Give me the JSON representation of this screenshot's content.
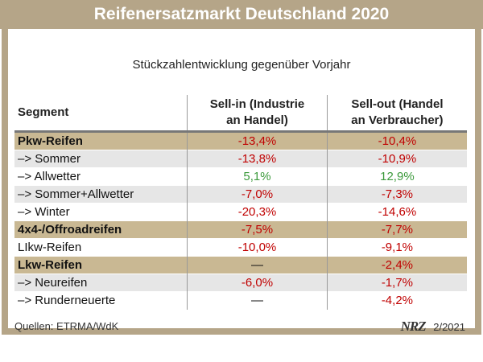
{
  "title": "Reifenersatzmarkt Deutschland 2020",
  "subtitle": "Stückzahlentwicklung gegenüber Vorjahr",
  "header": {
    "segment": "Segment",
    "sellin_line1": "Sell-in (Industrie",
    "sellin_line2": "an Handel)",
    "sellout_line1": "Sell-out (Handel",
    "sellout_line2": "an Verbraucher)"
  },
  "rows": [
    {
      "segment": "Pkw-Reifen",
      "sell_in": "-13,4%",
      "sell_out": "-10,4%",
      "style": "major",
      "in_color": "neg",
      "out_color": "neg"
    },
    {
      "segment": "–> Sommer",
      "sell_in": "-13,8%",
      "sell_out": "-10,9%",
      "style": "sub",
      "in_color": "neg",
      "out_color": "neg"
    },
    {
      "segment": "–> Allwetter",
      "sell_in": "5,1%",
      "sell_out": "12,9%",
      "style": "plain",
      "in_color": "pos",
      "out_color": "pos"
    },
    {
      "segment": "–> Sommer+Allwetter",
      "sell_in": "-7,0%",
      "sell_out": "-7,3%",
      "style": "sub",
      "in_color": "neg",
      "out_color": "neg"
    },
    {
      "segment": "–> Winter",
      "sell_in": "-20,3%",
      "sell_out": "-14,6%",
      "style": "plain",
      "in_color": "neg",
      "out_color": "neg"
    },
    {
      "segment": "4x4-/Offroadreifen",
      "sell_in": "-7,5%",
      "sell_out": "-7,7%",
      "style": "major",
      "in_color": "neg",
      "out_color": "neg"
    },
    {
      "segment": "LIkw-Reifen",
      "sell_in": "-10,0%",
      "sell_out": "-9,1%",
      "style": "plain",
      "in_color": "neg",
      "out_color": "neg"
    },
    {
      "segment": "Lkw-Reifen",
      "sell_in": "—",
      "sell_out": "-2,4%",
      "style": "major",
      "in_color": "dash",
      "out_color": "neg"
    },
    {
      "segment": "–> Neureifen",
      "sell_in": "-6,0%",
      "sell_out": "-1,7%",
      "style": "sub",
      "in_color": "neg",
      "out_color": "neg"
    },
    {
      "segment": "–> Runderneuerte",
      "sell_in": "—",
      "sell_out": "-4,2%",
      "style": "plain",
      "in_color": "dash",
      "out_color": "neg"
    }
  ],
  "footer": {
    "source": "Quellen: ETRMA/WdK",
    "logo": "NRZ",
    "issue": "2/2021"
  },
  "colors": {
    "frame": "#b5a588",
    "major_row": "#c9b893",
    "sub_row": "#e6e6e6",
    "negative": "#c00000",
    "positive": "#3c9a3c"
  }
}
